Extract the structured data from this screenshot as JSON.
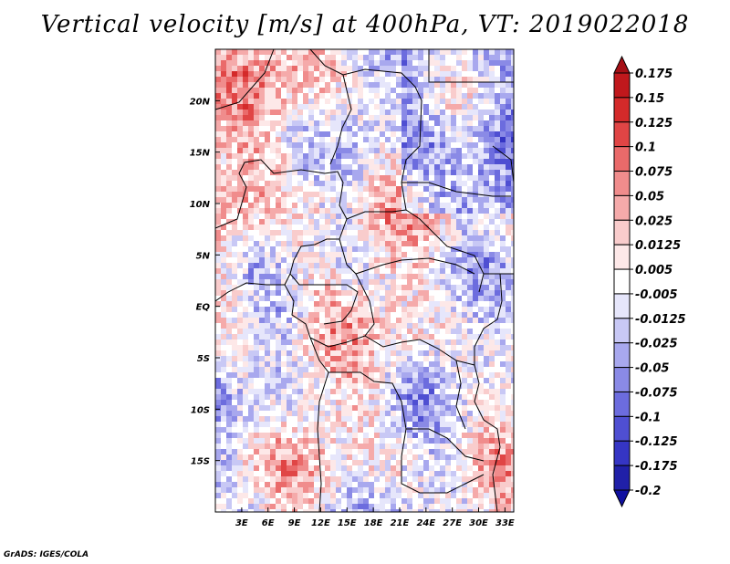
{
  "chart_data": {
    "type": "heatmap",
    "title": "Vertical velocity [m/s] at 400hPa, VT: 2019022018",
    "variable": "Vertical velocity",
    "units": "m/s",
    "level": "400hPa",
    "valid_time": "2019022018",
    "x_axis": {
      "label": "",
      "ticks": [
        "3E",
        "6E",
        "9E",
        "12E",
        "15E",
        "18E",
        "21E",
        "24E",
        "27E",
        "30E",
        "33E"
      ],
      "tick_values": [
        3,
        6,
        9,
        12,
        15,
        18,
        21,
        24,
        27,
        30,
        33
      ],
      "range": [
        0,
        34
      ]
    },
    "y_axis": {
      "label": "",
      "ticks": [
        "20N",
        "15N",
        "10N",
        "5N",
        "EQ",
        "5S",
        "10S",
        "15S"
      ],
      "tick_values": [
        20,
        15,
        10,
        5,
        0,
        -5,
        -10,
        -15
      ],
      "range": [
        -20,
        25
      ]
    },
    "colorbar": {
      "levels": [
        "0.175",
        "0.15",
        "0.125",
        "0.1",
        "0.075",
        "0.05",
        "0.025",
        "0.0125",
        "0.005",
        "-0.005",
        "-0.0125",
        "-0.025",
        "-0.05",
        "-0.075",
        "-0.1",
        "-0.125",
        "-0.175",
        "-0.2"
      ],
      "colors": [
        "#a50f15",
        "#c0181c",
        "#d42a2a",
        "#e04545",
        "#ea6a6a",
        "#f08c8c",
        "#f5aaaa",
        "#f9cccc",
        "#fde8e8",
        "#ffffff",
        "#e6e6fb",
        "#c8c8f5",
        "#a8a8ee",
        "#8a8ae6",
        "#6c6cde",
        "#4f4fd2",
        "#3535c4",
        "#2020a8",
        "#1010a0"
      ],
      "extend": "both"
    }
  },
  "credit": "GrADS: IGES/COLA"
}
